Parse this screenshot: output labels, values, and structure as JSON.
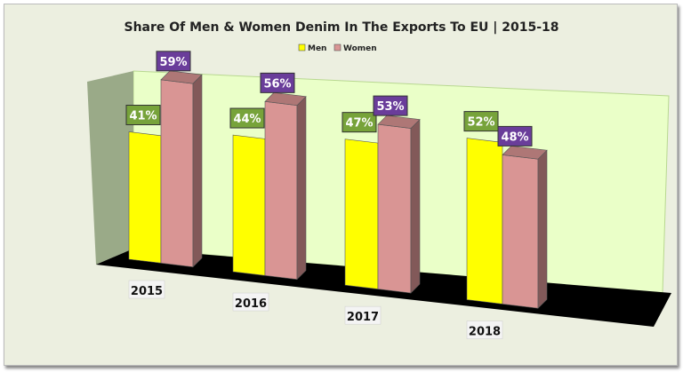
{
  "chart_data": {
    "type": "bar",
    "title": "Share Of Men & Women Denim In The Exports To EU | 2015-18",
    "categories": [
      "2015",
      "2016",
      "2017",
      "2018"
    ],
    "series": [
      {
        "name": "Men",
        "values": [
          41,
          44,
          47,
          52
        ],
        "color": "#ffff00",
        "label_color": "#77a33a"
      },
      {
        "name": "Women",
        "values": [
          59,
          56,
          53,
          48
        ],
        "color": "#d99594",
        "label_color": "#6a3d9a"
      }
    ],
    "value_suffix": "%",
    "legend": "top-center",
    "ylim": [
      0,
      100
    ],
    "grid": false
  }
}
